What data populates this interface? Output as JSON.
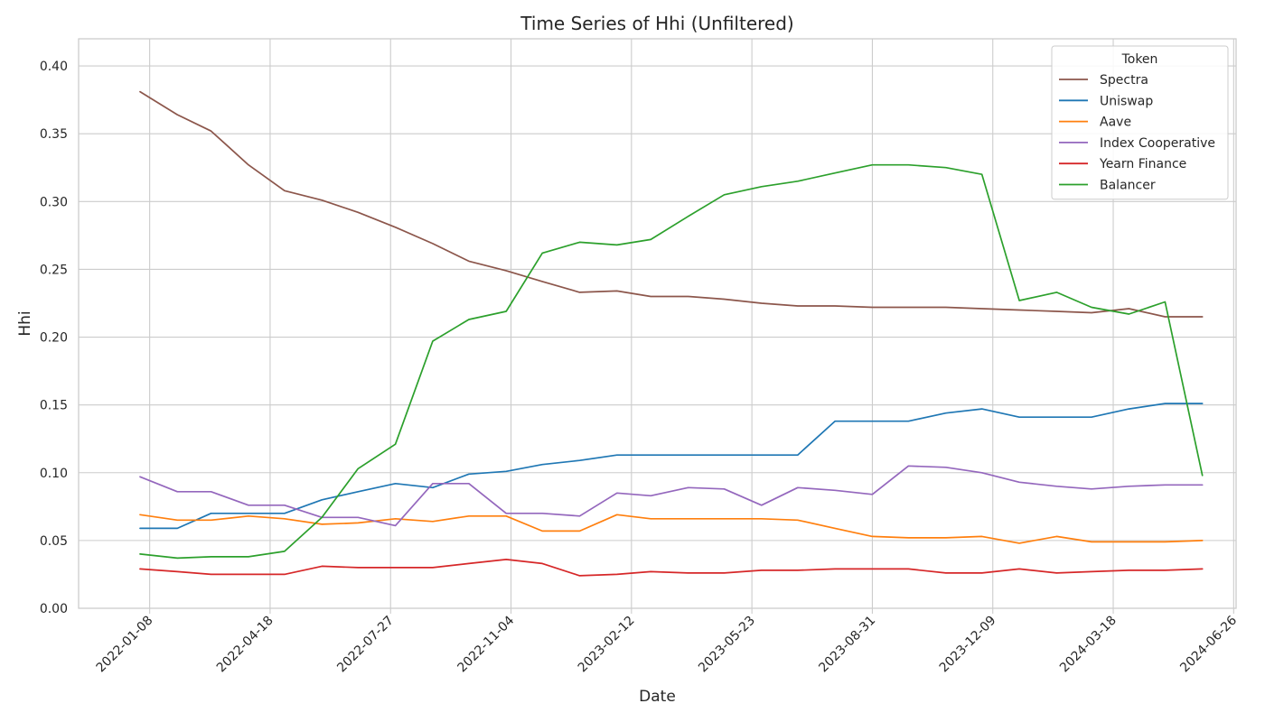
{
  "chart_data": {
    "type": "line",
    "title": "Time Series of Hhi (Unfiltered)",
    "xlabel": "Date",
    "ylabel": "Hhi",
    "x_ticks": [
      "2022-01-08",
      "2022-04-18",
      "2022-07-27",
      "2022-11-04",
      "2023-02-12",
      "2023-05-23",
      "2023-08-31",
      "2023-12-09",
      "2024-03-18",
      "2024-06-26"
    ],
    "xlim": [
      "2021-11-10",
      "2024-06-28"
    ],
    "ylim": [
      0,
      0.42
    ],
    "y_ticks": [
      0.0,
      0.05,
      0.1,
      0.15,
      0.2,
      0.25,
      0.3,
      0.35,
      0.4
    ],
    "y_tick_labels": [
      "0.00",
      "0.05",
      "0.10",
      "0.15",
      "0.20",
      "0.25",
      "0.30",
      "0.35",
      "0.40"
    ],
    "grid": true,
    "legend_position": "top-right",
    "legend_title": "Token",
    "x": [
      "2021-12-31",
      "2022-01-31",
      "2022-02-28",
      "2022-03-31",
      "2022-04-30",
      "2022-05-31",
      "2022-06-30",
      "2022-07-31",
      "2022-08-31",
      "2022-09-30",
      "2022-10-31",
      "2022-11-30",
      "2022-12-31",
      "2023-01-31",
      "2023-02-28",
      "2023-03-31",
      "2023-04-30",
      "2023-05-31",
      "2023-06-30",
      "2023-07-31",
      "2023-08-31",
      "2023-09-30",
      "2023-10-31",
      "2023-11-30",
      "2023-12-31",
      "2024-01-31",
      "2024-02-29",
      "2024-03-31",
      "2024-04-30",
      "2024-05-31"
    ],
    "series": [
      {
        "name": "Spectra",
        "color": "#8c564b",
        "values": [
          0.381,
          0.364,
          0.352,
          0.327,
          0.308,
          0.301,
          0.292,
          0.281,
          0.269,
          0.256,
          0.249,
          0.241,
          0.233,
          0.234,
          0.23,
          0.23,
          0.228,
          0.225,
          0.223,
          0.223,
          0.222,
          0.222,
          0.222,
          0.221,
          0.22,
          0.219,
          0.218,
          0.221,
          0.215,
          0.215
        ]
      },
      {
        "name": "Uniswap",
        "color": "#1f77b4",
        "values": [
          0.059,
          0.059,
          0.07,
          0.07,
          0.07,
          0.08,
          0.086,
          0.092,
          0.089,
          0.099,
          0.101,
          0.106,
          0.109,
          0.113,
          0.113,
          0.113,
          0.113,
          0.113,
          0.113,
          0.138,
          0.138,
          0.138,
          0.144,
          0.147,
          0.141,
          0.141,
          0.141,
          0.147,
          0.151,
          0.151
        ]
      },
      {
        "name": "Aave",
        "color": "#ff7f0e",
        "values": [
          0.069,
          0.065,
          0.065,
          0.068,
          0.066,
          0.062,
          0.063,
          0.066,
          0.064,
          0.068,
          0.068,
          0.057,
          0.057,
          0.069,
          0.066,
          0.066,
          0.066,
          0.066,
          0.065,
          0.059,
          0.053,
          0.052,
          0.052,
          0.053,
          0.048,
          0.053,
          0.049,
          0.049,
          0.049,
          0.05
        ]
      },
      {
        "name": "Index Cooperative",
        "color": "#9467bd",
        "values": [
          0.097,
          0.086,
          0.086,
          0.076,
          0.076,
          0.067,
          0.067,
          0.061,
          0.092,
          0.092,
          0.07,
          0.07,
          0.068,
          0.085,
          0.083,
          0.089,
          0.088,
          0.076,
          0.089,
          0.087,
          0.084,
          0.105,
          0.104,
          0.1,
          0.093,
          0.09,
          0.088,
          0.09,
          0.091,
          0.091
        ]
      },
      {
        "name": "Yearn Finance",
        "color": "#d62728",
        "values": [
          0.029,
          0.027,
          0.025,
          0.025,
          0.025,
          0.031,
          0.03,
          0.03,
          0.03,
          0.033,
          0.036,
          0.033,
          0.024,
          0.025,
          0.027,
          0.026,
          0.026,
          0.028,
          0.028,
          0.029,
          0.029,
          0.029,
          0.026,
          0.026,
          0.029,
          0.026,
          0.027,
          0.028,
          0.028,
          0.029
        ]
      },
      {
        "name": "Balancer",
        "color": "#2ca02c",
        "values": [
          0.04,
          0.037,
          0.038,
          0.038,
          0.042,
          0.067,
          0.103,
          0.121,
          0.197,
          0.213,
          0.219,
          0.262,
          0.27,
          0.268,
          0.272,
          0.289,
          0.305,
          0.311,
          0.315,
          0.321,
          0.327,
          0.327,
          0.325,
          0.32,
          0.227,
          0.233,
          0.222,
          0.217,
          0.226,
          0.098
        ]
      }
    ]
  }
}
